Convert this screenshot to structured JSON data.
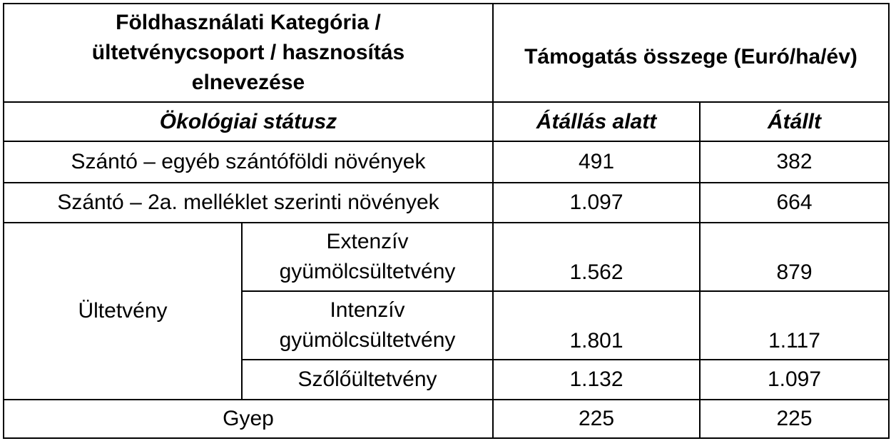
{
  "header": {
    "category": "Földhasználati Kategória / ültetvénycsoport / hasznosítás elnevezése",
    "amount": "Támogatás összege (Euró/ha/év)"
  },
  "subheader": {
    "status": "Ökológiai státusz",
    "converting": "Átállás alatt",
    "converted": "Átállt"
  },
  "rows": [
    {
      "label": "Szántó – egyéb szántóföldi növények",
      "converting": "491",
      "converted": "382"
    },
    {
      "label": "Szántó – 2a. melléklet szerinti növények",
      "converting": "1.097",
      "converted": "664"
    }
  ],
  "plantation": {
    "label": "Ültetvény",
    "rows": [
      {
        "label": "Extenzív gyümölcsültetvény",
        "converting": "1.562",
        "converted": "879"
      },
      {
        "label": "Intenzív gyümölcsültetvény",
        "converting": "1.801",
        "converted": "1.117"
      },
      {
        "label": "Szőlőültetvény",
        "converting": "1.132",
        "converted": "1.097"
      }
    ]
  },
  "grass": {
    "label": "Gyep",
    "converting": "225",
    "converted": "225"
  }
}
